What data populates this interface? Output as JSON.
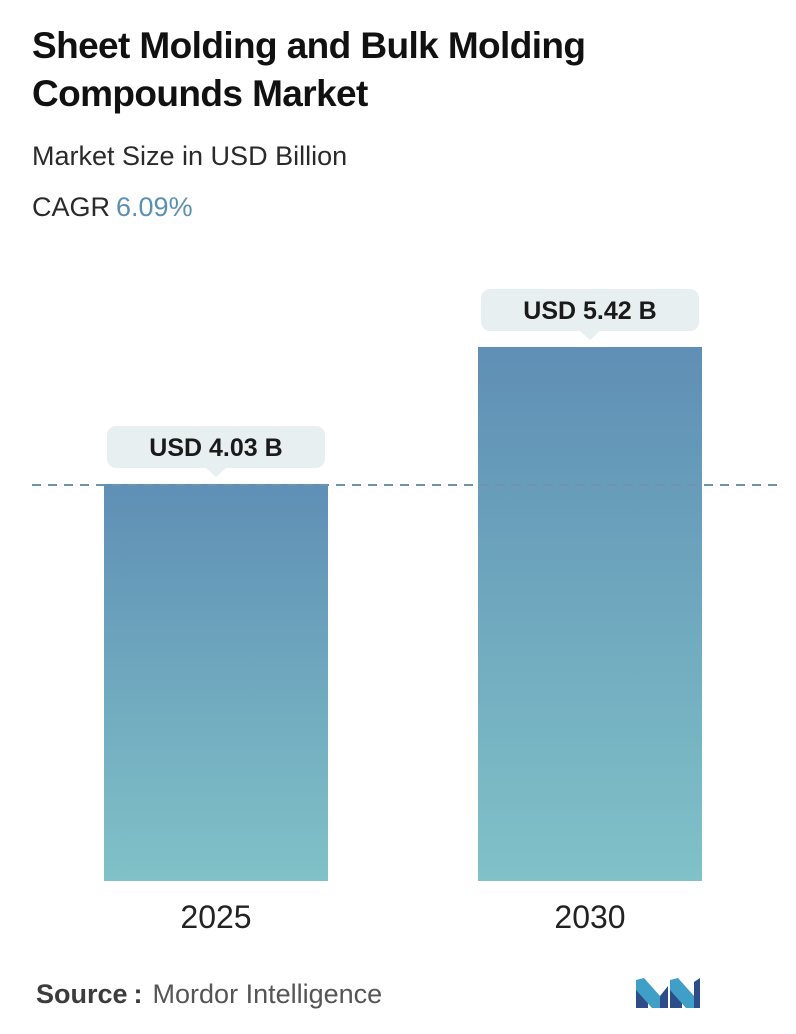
{
  "header": {
    "title": "Sheet Molding and Bulk Molding Compounds Market",
    "subtitle": "Market Size in USD Billion",
    "cagr_label": "CAGR",
    "cagr_value": "6.09%"
  },
  "chart_data": {
    "type": "bar",
    "categories": [
      "2025",
      "2030"
    ],
    "values": [
      4.03,
      5.42
    ],
    "value_labels": [
      "USD 4.03 B",
      "USD 5.42 B"
    ],
    "title": "Sheet Molding and Bulk Molding Compounds Market",
    "subtitle": "Market Size in USD Billion",
    "ylim": [
      0,
      5.42
    ],
    "grid": false,
    "reference_line": "dashed line at the first bar's value",
    "colors": {
      "bar_top": "#5f8fb5",
      "bar_bottom": "#80c2c8",
      "label_bg": "#e7eff1",
      "dash": "#6e93ad"
    }
  },
  "footer": {
    "source_label": "Source",
    "source_sep": ":",
    "source_value": "Mordor Intelligence",
    "logo": "mordor-intelligence-logo"
  }
}
